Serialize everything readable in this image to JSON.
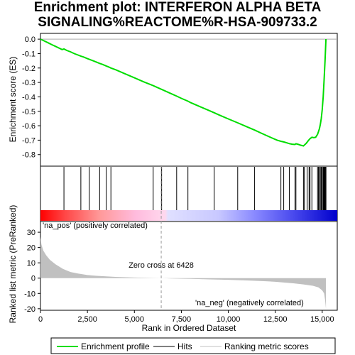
{
  "title_line1": "Enrichment plot: INTERFERON ALPHA BETA",
  "title_line2": "SIGNALING%REACTOME%R-HSA-909733.2",
  "colors": {
    "profile": "#00dd00",
    "hits": "#000000",
    "metric": "#c0c0c0",
    "pos_label": "#cc0000",
    "neg_label": "#0000cc",
    "zero_line": "#aaaaaa"
  },
  "chart_data": [
    {
      "type": "line",
      "name": "enrichment_profile",
      "ylabel": "Enrichment score (ES)",
      "ylim": [
        -0.88,
        0.04
      ],
      "xlim": [
        0,
        15800
      ],
      "y_ticks": [
        "0.0",
        "-0.1",
        "-0.2",
        "-0.3",
        "-0.4",
        "-0.5",
        "-0.6",
        "-0.7",
        "-0.8"
      ],
      "y_tick_values": [
        0.0,
        -0.1,
        -0.2,
        -0.3,
        -0.4,
        -0.5,
        -0.6,
        -0.7,
        -0.8
      ],
      "grid": false,
      "series": [
        {
          "name": "Enrichment profile",
          "x": [
            0,
            200,
            400,
            600,
            800,
            1000,
            1150,
            1250,
            1400,
            1600,
            1800,
            2000,
            2150,
            2300,
            2500,
            2600,
            2800,
            3000,
            3150,
            3300,
            3500,
            3650,
            3750,
            4000,
            4500,
            5000,
            5500,
            6000,
            6400,
            7000,
            7250,
            7500,
            7850,
            8000,
            8500,
            9000,
            9250,
            9500,
            10000,
            10500,
            11000,
            11400,
            11800,
            12200,
            12600,
            12800,
            12950,
            13100,
            13250,
            13400,
            13550,
            13600,
            13700,
            13850,
            14000,
            14050,
            14150,
            14250,
            14350,
            14450,
            14550,
            14650,
            14750,
            14800,
            14850,
            14900,
            14950,
            15000,
            15050,
            15100,
            15150,
            15200
          ],
          "y": [
            0.0,
            -0.012,
            -0.025,
            -0.038,
            -0.05,
            -0.063,
            -0.072,
            -0.068,
            -0.078,
            -0.088,
            -0.1,
            -0.11,
            -0.118,
            -0.124,
            -0.135,
            -0.14,
            -0.15,
            -0.16,
            -0.168,
            -0.175,
            -0.186,
            -0.194,
            -0.2,
            -0.212,
            -0.24,
            -0.268,
            -0.296,
            -0.322,
            -0.345,
            -0.38,
            -0.395,
            -0.41,
            -0.43,
            -0.44,
            -0.468,
            -0.496,
            -0.51,
            -0.525,
            -0.553,
            -0.58,
            -0.608,
            -0.63,
            -0.654,
            -0.678,
            -0.7,
            -0.708,
            -0.712,
            -0.718,
            -0.724,
            -0.728,
            -0.73,
            -0.725,
            -0.728,
            -0.735,
            -0.74,
            -0.734,
            -0.722,
            -0.705,
            -0.69,
            -0.68,
            -0.682,
            -0.68,
            -0.66,
            -0.642,
            -0.62,
            -0.59,
            -0.55,
            -0.49,
            -0.4,
            -0.28,
            -0.15,
            0.0
          ]
        }
      ]
    },
    {
      "type": "scatter",
      "name": "hits",
      "xlim": [
        0,
        15800
      ],
      "hit_positions": [
        1250,
        2150,
        2600,
        3150,
        3500,
        3750,
        6000,
        6450,
        7250,
        7850,
        9250,
        10500,
        11400,
        12800,
        12950,
        13250,
        13550,
        13600,
        14000,
        14050,
        14200,
        14300,
        14350,
        14450,
        14750,
        14800,
        14850,
        14900,
        14950,
        15000,
        15050,
        15080,
        15100,
        15120,
        15150,
        15180,
        15200
      ]
    },
    {
      "type": "area",
      "name": "ranked_list_metric",
      "ylabel": "Ranked list metric (PreRanked)",
      "xlabel": "Rank in Ordered Dataset",
      "xlim": [
        0,
        15800
      ],
      "ylim": [
        -21,
        37
      ],
      "x_ticks": [
        "0",
        "2,500",
        "5,000",
        "7,500",
        "10,000",
        "12,500",
        "15,000"
      ],
      "x_tick_values": [
        0,
        2500,
        5000,
        7500,
        10000,
        12500,
        15000
      ],
      "y_ticks": [
        "30",
        "20",
        "10",
        "0",
        "-10",
        "-20"
      ],
      "y_tick_values": [
        30,
        20,
        10,
        0,
        -10,
        -20
      ],
      "series": [
        {
          "name": "Ranking metric scores",
          "x": [
            0,
            50,
            150,
            300,
            500,
            800,
            1200,
            1600,
            2000,
            2500,
            3000,
            4000,
            5000,
            6000,
            6428,
            7000,
            8000,
            9000,
            10000,
            11000,
            12000,
            12500,
            13000,
            13500,
            14000,
            14500,
            14800,
            15000,
            15100,
            15150,
            15200
          ],
          "y": [
            27,
            22,
            18,
            15,
            12,
            9,
            6,
            4,
            3,
            2,
            1.5,
            0.8,
            0.4,
            0.1,
            0,
            -0.2,
            -0.5,
            -0.8,
            -1.1,
            -1.5,
            -2,
            -2.4,
            -2.9,
            -3.4,
            -4.1,
            -5,
            -6,
            -8,
            -10,
            -14,
            -20
          ]
        }
      ],
      "zero_cross_label": "Zero cross at 6428",
      "zero_cross": 6428,
      "pos_label": "'na_pos' (positively correlated)",
      "neg_label": "'na_neg' (negatively correlated)"
    }
  ],
  "legend": {
    "profile": "Enrichment profile",
    "hits": "Hits",
    "metric": "Ranking metric scores"
  }
}
